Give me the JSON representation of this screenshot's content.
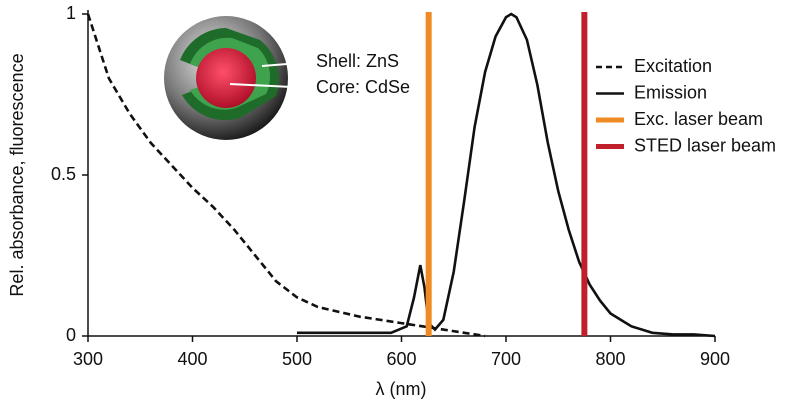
{
  "chart_data": {
    "type": "line",
    "xlabel": "λ (nm)",
    "ylabel": "Rel. absorbance, fluorescence",
    "xlim": [
      300,
      900
    ],
    "xticks": [
      300,
      400,
      500,
      600,
      700,
      800,
      900
    ],
    "ylim": [
      0,
      1
    ],
    "yticks": [
      0,
      0.5,
      1
    ],
    "legend": "right",
    "series": [
      {
        "name": "Excitation",
        "color": "#111111",
        "style": "dashed",
        "x": [
          300,
          310,
          320,
          340,
          360,
          380,
          400,
          420,
          440,
          460,
          480,
          500,
          520,
          540,
          560,
          580,
          600,
          620,
          640,
          660,
          680
        ],
        "values": [
          1.0,
          0.9,
          0.8,
          0.69,
          0.6,
          0.53,
          0.46,
          0.4,
          0.33,
          0.25,
          0.17,
          0.12,
          0.09,
          0.075,
          0.06,
          0.05,
          0.04,
          0.03,
          0.02,
          0.01,
          0
        ]
      },
      {
        "name": "Emission",
        "color": "#111111",
        "style": "solid",
        "x": [
          500,
          520,
          560,
          590,
          605,
          612,
          618,
          622,
          626,
          632,
          640,
          650,
          660,
          670,
          680,
          690,
          700,
          705,
          710,
          720,
          730,
          740,
          750,
          760,
          770,
          780,
          790,
          800,
          820,
          840,
          860,
          880,
          900
        ],
        "values": [
          0.01,
          0.01,
          0.01,
          0.01,
          0.03,
          0.12,
          0.22,
          0.15,
          0.04,
          0.02,
          0.05,
          0.2,
          0.42,
          0.65,
          0.82,
          0.93,
          0.99,
          1.0,
          0.99,
          0.92,
          0.78,
          0.6,
          0.45,
          0.33,
          0.23,
          0.16,
          0.11,
          0.07,
          0.03,
          0.01,
          0.005,
          0.005,
          0
        ]
      }
    ],
    "laser_lines": [
      {
        "name": "Exc. laser beam",
        "color": "#f08a24",
        "x": 626
      },
      {
        "name": "STED laser beam",
        "color": "#c0202a",
        "x": 775
      }
    ],
    "annotations": [
      "Shell: ZnS",
      "Core: CdSe"
    ]
  }
}
